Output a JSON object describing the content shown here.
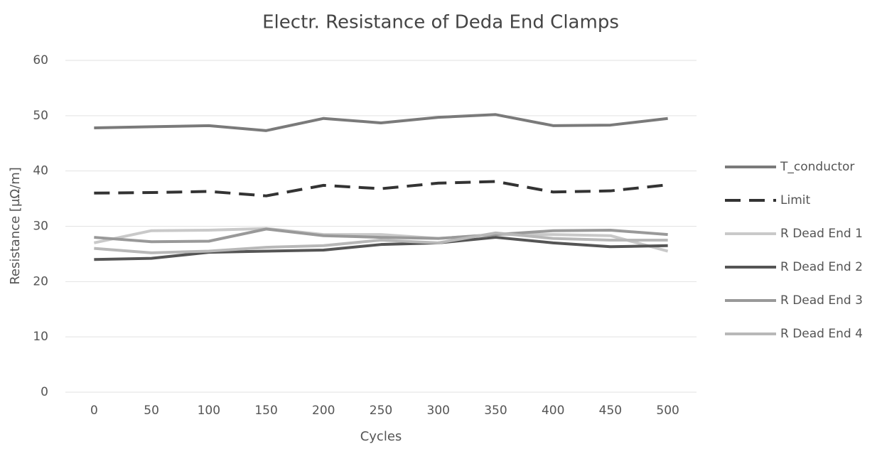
{
  "chart_data": {
    "type": "line",
    "title": "Electr. Resistance of Deda End Clamps",
    "x_label": "Cycles",
    "y_label": "Resistance [µΩ/m]",
    "categories": [
      "0",
      "50",
      "100",
      "150",
      "200",
      "250",
      "300",
      "350",
      "400",
      "450",
      "500"
    ],
    "series": [
      {
        "name": "T_conductor",
        "color": "#7a7a7a",
        "values": [
          47.8,
          48,
          48.2,
          47.3,
          49.5,
          48.7,
          49.7,
          50.2,
          48.2,
          48.3,
          49.5
        ]
      },
      {
        "name": "Limit",
        "color": "#333333",
        "dashed": true,
        "values": [
          36,
          36.1,
          36.3,
          35.5,
          37.4,
          36.8,
          37.8,
          38.1,
          36.2,
          36.4,
          37.5
        ]
      },
      {
        "name": "R Dead End 1",
        "color": "#c9c9c9",
        "values": [
          27,
          29.2,
          29.3,
          29.6,
          28.5,
          28.5,
          27.8,
          28.5,
          28.5,
          28.3,
          25.5
        ]
      },
      {
        "name": "R Dead End 2",
        "color": "#555555",
        "values": [
          24,
          24.2,
          25.3,
          25.5,
          25.7,
          26.7,
          27,
          28,
          27,
          26.3,
          26.5
        ]
      },
      {
        "name": "R Dead End 3",
        "color": "#999999",
        "values": [
          28,
          27.2,
          27.3,
          29.5,
          28.3,
          28,
          27.8,
          28.5,
          29.2,
          29.3,
          28.5
        ]
      },
      {
        "name": "R Dead End 4",
        "color": "#b8b8b8",
        "values": [
          26,
          25.2,
          25.5,
          26.2,
          26.5,
          27.5,
          27,
          28.8,
          27.8,
          27.5,
          27.5
        ]
      }
    ],
    "ylim": [
      0,
      60
    ],
    "yticks": [
      0,
      10,
      20,
      30,
      40,
      50,
      60
    ],
    "grid": true,
    "legend": "right"
  }
}
